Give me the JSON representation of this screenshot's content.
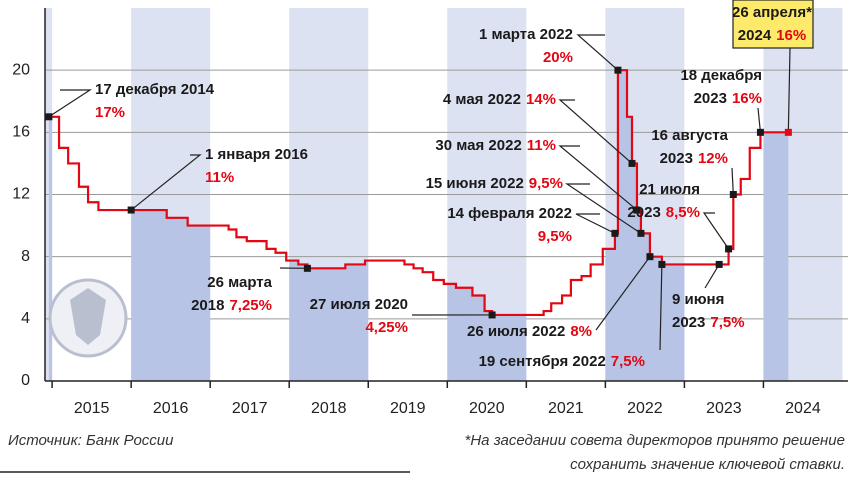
{
  "chart_data": {
    "type": "step",
    "xlim": [
      2014.91,
      2025.07
    ],
    "xticks": [
      2015,
      2016,
      2017,
      2018,
      2019,
      2020,
      2021,
      2022,
      2023,
      2024
    ],
    "ylim": [
      0,
      24
    ],
    "yticks": [
      0,
      4,
      8,
      12,
      16,
      20
    ],
    "grid": true,
    "series": [
      {
        "color": "#e30613",
        "x": [
          2014.959,
          2015.088,
          2015.203,
          2015.34,
          2015.455,
          2015.586,
          2016.45,
          2016.715,
          2017.233,
          2017.332,
          2017.463,
          2017.713,
          2017.827,
          2017.962,
          2018.115,
          2018.23,
          2018.71,
          2018.959,
          2019.458,
          2019.573,
          2019.688,
          2019.822,
          2019.956,
          2020.11,
          2020.318,
          2020.472,
          2020.567,
          2021.219,
          2021.315,
          2021.452,
          2021.564,
          2021.699,
          2021.814,
          2021.967,
          2022.121,
          2022.159,
          2022.274,
          2022.337,
          2022.4,
          2022.45,
          2022.564,
          2022.715,
          2023.559,
          2023.619,
          2023.713,
          2023.827,
          2023.962,
          2024.315
        ],
        "values": [
          17,
          15,
          14,
          12.5,
          11.5,
          11,
          10.5,
          10,
          9.75,
          9.25,
          9,
          8.5,
          8.25,
          7.75,
          7.5,
          7.25,
          7.5,
          7.75,
          7.5,
          7.25,
          7,
          6.5,
          6.25,
          6,
          5.5,
          4.5,
          4.25,
          4.5,
          5,
          5.5,
          6.5,
          6.75,
          7.5,
          8.5,
          9.5,
          20,
          17,
          14,
          11,
          9.5,
          8,
          7.5,
          8.5,
          12,
          13,
          15,
          16,
          16
        ]
      }
    ],
    "annotations": [
      {
        "date": [
          "17 декабря 2014"
        ],
        "label": "17%",
        "x": 2014.959,
        "value": 17
      },
      {
        "date": [
          "1 января 2016"
        ],
        "label": "11%",
        "x": 2016.0,
        "value": 11
      },
      {
        "date": [
          "26 марта",
          "2018"
        ],
        "label": "7,25%",
        "x": 2018.23,
        "value": 7.25
      },
      {
        "date": [
          "27 июля 2020"
        ],
        "label": "4,25%",
        "x": 2020.567,
        "value": 4.25
      },
      {
        "date": [
          "26 июля 2022"
        ],
        "label": "8%",
        "x": 2022.564,
        "value": 8
      },
      {
        "date": [
          "19 сентября 2022"
        ],
        "label": "7,5%",
        "x": 2022.715,
        "value": 7.5
      },
      {
        "date": [
          "1 марта 2022"
        ],
        "label": "20%",
        "x": 2022.159,
        "value": 20
      },
      {
        "date": [
          "4 мая 2022"
        ],
        "label": "14%",
        "x": 2022.337,
        "value": 14
      },
      {
        "date": [
          "30 мая 2022"
        ],
        "label": "11%",
        "x": 2022.4,
        "value": 11
      },
      {
        "date": [
          "15 июня 2022"
        ],
        "label": "9,5%",
        "x": 2022.45,
        "value": 9.5
      },
      {
        "date": [
          "14 февраля 2022"
        ],
        "label": "9,5%",
        "x": 2022.121,
        "value": 9.5
      },
      {
        "date": [
          "21 июля",
          "2023"
        ],
        "label": "8,5%",
        "x": 2023.559,
        "value": 8.5
      },
      {
        "date": [
          "9 июня",
          "2023"
        ],
        "label": "7,5%",
        "x": 2023.44,
        "value": 7.5
      },
      {
        "date": [
          "16 августа",
          "2023"
        ],
        "label": "12%",
        "x": 2023.619,
        "value": 12
      },
      {
        "date": [
          "18 декабря",
          "2023"
        ],
        "label": "16%",
        "x": 2023.962,
        "value": 16
      },
      {
        "date": [
          "26 апреля*",
          "2024"
        ],
        "label": "16%",
        "x": 2024.315,
        "value": 16
      }
    ],
    "source": "Источник: Банк России",
    "footnote": [
      "*На заседании совета директоров принято решение",
      "сохранить значение ключевой ставки."
    ]
  }
}
